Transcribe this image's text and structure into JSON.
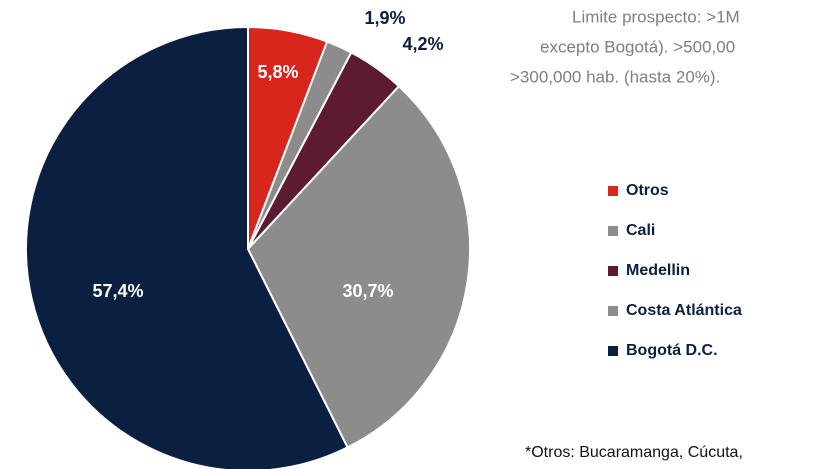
{
  "chart_data": {
    "type": "pie",
    "categories": [
      "Otros",
      "Cali",
      "Medellin",
      "Costa Atlántica",
      "Bogotá D.C."
    ],
    "values": [
      5.8,
      1.9,
      4.2,
      30.7,
      57.4
    ],
    "value_labels": [
      "5,8%",
      "1,9%",
      "4,2%",
      "30,7%",
      "57,4%"
    ],
    "colors": [
      "#d9261c",
      "#8c8c8c",
      "#5c1a33",
      "#8c8c8c",
      "#0b1f40"
    ],
    "annotations": [
      "Limite prospecto: >1M",
      "excepto Bogotá). >500,00",
      ">300,000 hab. (hasta 20%).",
      "*Otros: Bucaramanga, Cúcuta,"
    ]
  }
}
